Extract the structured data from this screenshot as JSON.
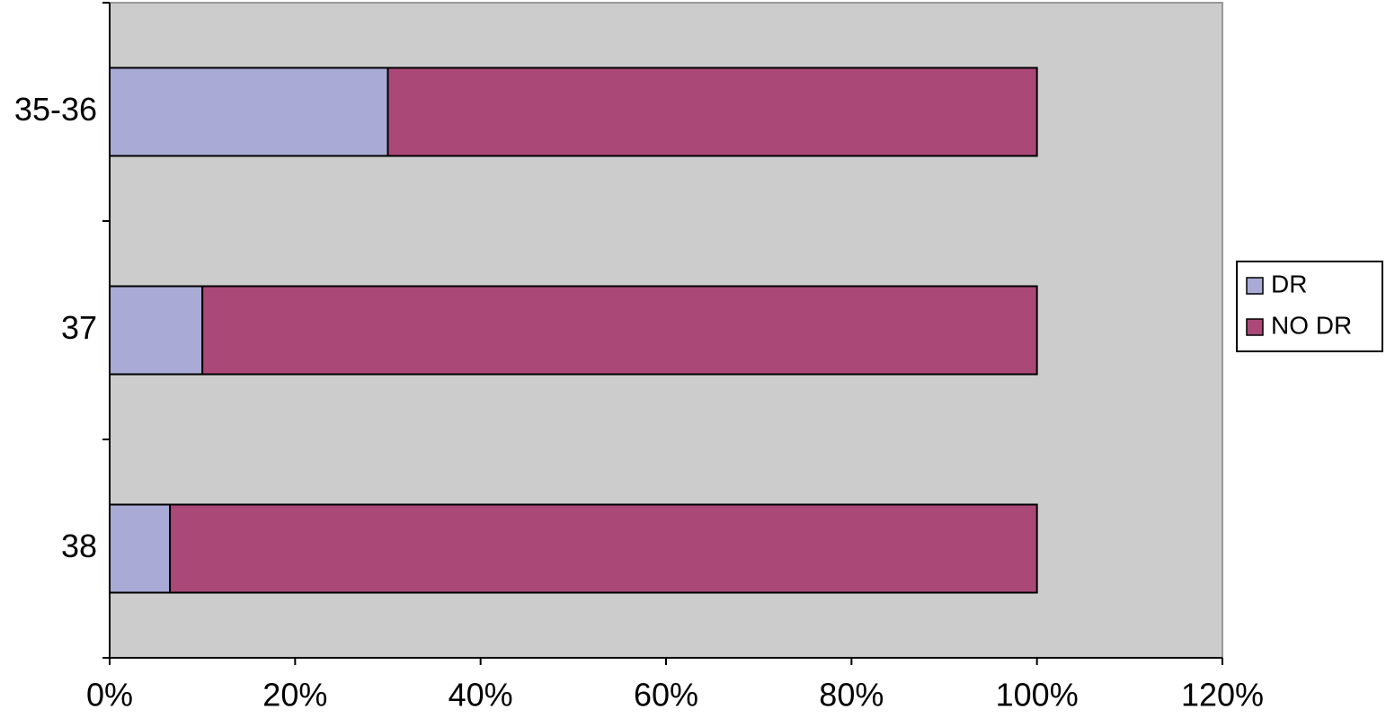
{
  "chart_data": {
    "type": "stacked-barh",
    "categories": [
      "35-36",
      "37",
      "38"
    ],
    "series": [
      {
        "name": "DR",
        "color": "#aaaad6",
        "values": [
          30,
          10,
          6.5
        ]
      },
      {
        "name": "NO DR",
        "color": "#aa4978",
        "values": [
          70,
          90,
          93.5
        ]
      }
    ],
    "xlim": [
      0,
      120
    ],
    "xticks": [
      {
        "value": 0,
        "label": "0%"
      },
      {
        "value": 20,
        "label": "20%"
      },
      {
        "value": 40,
        "label": "40%"
      },
      {
        "value": 60,
        "label": "60%"
      },
      {
        "value": 80,
        "label": "80%"
      },
      {
        "value": 100,
        "label": "100%"
      },
      {
        "value": 120,
        "label": "120%"
      }
    ],
    "grid": false,
    "legend": "right"
  }
}
